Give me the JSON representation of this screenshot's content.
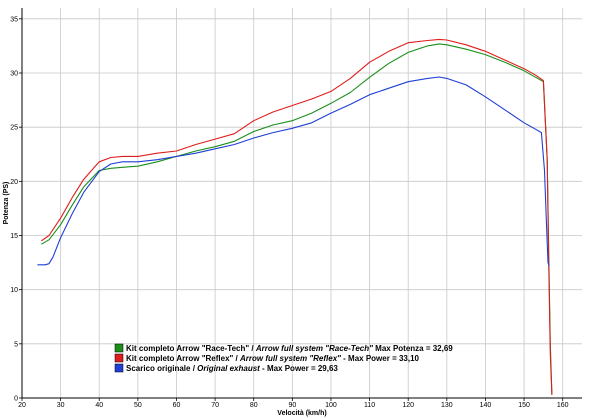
{
  "chart_data": {
    "type": "line",
    "xlabel": "Velocità (km/h)",
    "ylabel": "Potenza (PS)",
    "xlim": [
      20,
      165
    ],
    "ylim": [
      0,
      36
    ],
    "xticks": [
      20,
      30,
      40,
      50,
      60,
      70,
      80,
      90,
      100,
      110,
      120,
      130,
      140,
      150,
      160
    ],
    "yticks": [
      0,
      5,
      10,
      15,
      20,
      25,
      30,
      35
    ],
    "grid": true,
    "legend_position": "bottom-center",
    "series": [
      {
        "name_parts": [
          "Kit completo Arrow \"Race-Tech\" / ",
          "Arrow full system \"Race-Tech\"",
          " Max Potenza = 32,69"
        ],
        "color": "#1a8f1a",
        "x": [
          25,
          27,
          30,
          33,
          36,
          40,
          43,
          46,
          50,
          55,
          60,
          65,
          70,
          75,
          80,
          85,
          90,
          95,
          100,
          105,
          110,
          115,
          120,
          125,
          128,
          130,
          135,
          140,
          145,
          150,
          153,
          155,
          156,
          156.4,
          156.8,
          157.2
        ],
        "y": [
          14.2,
          14.6,
          16.0,
          17.8,
          19.5,
          21.0,
          21.2,
          21.3,
          21.4,
          21.8,
          22.3,
          22.8,
          23.2,
          23.7,
          24.6,
          25.2,
          25.6,
          26.3,
          27.2,
          28.2,
          29.6,
          30.9,
          31.9,
          32.5,
          32.69,
          32.6,
          32.2,
          31.7,
          31.0,
          30.2,
          29.6,
          29.2,
          22.0,
          13.0,
          5.0,
          0.3
        ]
      },
      {
        "name_parts": [
          "Kit completo Arrow \"Reflex\" / ",
          "Arrow full system \"Reflex\"",
          " - Max Power = 33,10"
        ],
        "color": "#e01c1c",
        "x": [
          25,
          27,
          30,
          33,
          36,
          40,
          43,
          46,
          50,
          55,
          60,
          65,
          70,
          75,
          80,
          85,
          90,
          95,
          100,
          105,
          110,
          115,
          120,
          125,
          128,
          130,
          135,
          140,
          145,
          150,
          153,
          155,
          156,
          156.4,
          156.8,
          157.2
        ],
        "y": [
          14.5,
          15.0,
          16.6,
          18.5,
          20.2,
          21.8,
          22.2,
          22.3,
          22.3,
          22.6,
          22.8,
          23.4,
          23.9,
          24.4,
          25.6,
          26.4,
          27.0,
          27.6,
          28.3,
          29.5,
          31.0,
          32.0,
          32.8,
          33.0,
          33.1,
          33.05,
          32.6,
          32.0,
          31.2,
          30.4,
          29.8,
          29.3,
          22.0,
          12.0,
          4.0,
          0.3
        ]
      },
      {
        "name_parts": [
          "Scarico originale / ",
          "Original exhaust",
          " - Max Power = 29,63"
        ],
        "color": "#1f3fd6",
        "x": [
          24,
          26,
          27,
          28,
          30,
          33,
          36,
          40,
          43,
          46,
          50,
          55,
          60,
          65,
          70,
          75,
          80,
          85,
          90,
          95,
          100,
          105,
          110,
          115,
          120,
          125,
          128,
          130,
          135,
          140,
          145,
          150,
          153,
          154.5,
          155.3,
          155.8,
          156.2,
          156.5
        ],
        "y": [
          12.3,
          12.3,
          12.4,
          13.0,
          14.8,
          17.0,
          19.0,
          20.9,
          21.6,
          21.8,
          21.8,
          22.0,
          22.3,
          22.6,
          23.0,
          23.4,
          24.0,
          24.5,
          24.9,
          25.4,
          26.3,
          27.1,
          28.0,
          28.6,
          29.2,
          29.5,
          29.63,
          29.5,
          28.9,
          27.8,
          26.6,
          25.4,
          24.8,
          24.5,
          21.0,
          16.0,
          12.5,
          12.2
        ]
      }
    ]
  }
}
